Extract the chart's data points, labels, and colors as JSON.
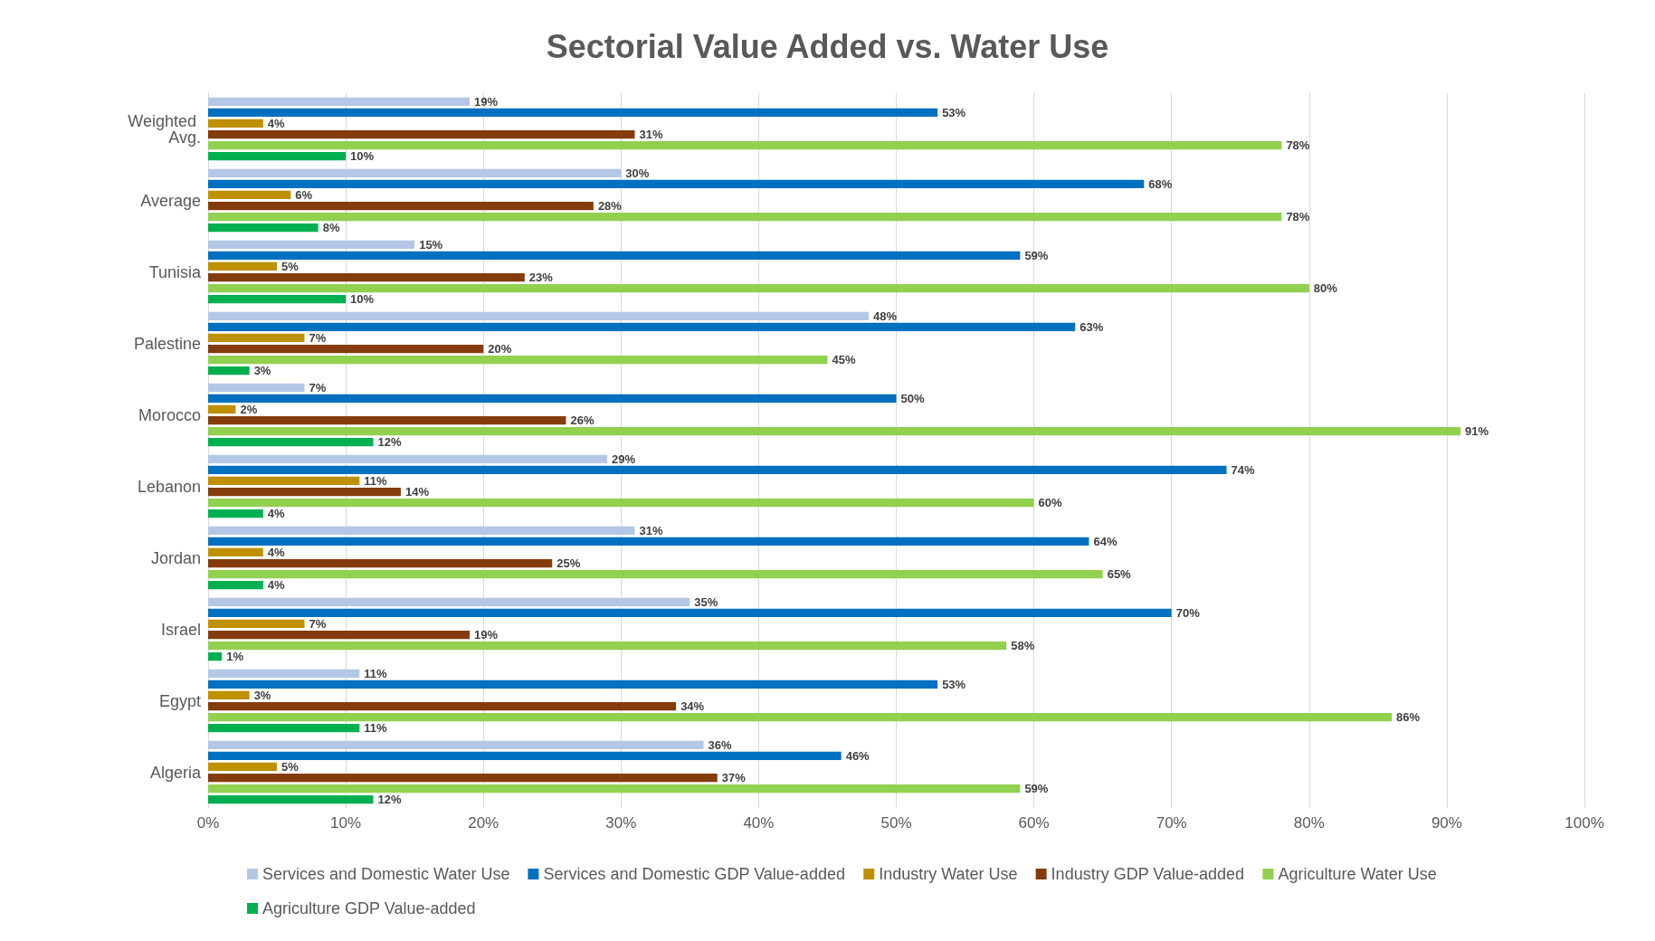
{
  "chart_data": {
    "type": "bar",
    "orientation": "horizontal",
    "title": "Sectorial Value Added vs. Water Use",
    "categories": [
      "Weighted Avg.",
      "Average",
      "Tunisia",
      "Palestine",
      "Morocco",
      "Lebanon",
      "Jordan",
      "Israel",
      "Egypt",
      "Algeria"
    ],
    "series": [
      {
        "name": "Services and Domestic Water Use",
        "color": "#b4c7e7",
        "values": [
          19,
          30,
          15,
          48,
          7,
          29,
          31,
          35,
          11,
          36
        ],
        "value_labels": [
          "19%",
          "30%",
          "15%",
          "48%",
          "7%",
          "29%",
          "31%",
          "35%",
          "11%",
          "36%"
        ]
      },
      {
        "name": "Services and Domestic GDP Value-added",
        "color": "#0070c0",
        "values": [
          53,
          68,
          59,
          63,
          50,
          74,
          64,
          70,
          53,
          46
        ],
        "value_labels": [
          "53%",
          "68%",
          "59%",
          "63%",
          "50%",
          "74%",
          "64%",
          "70%",
          "53%",
          "46%"
        ]
      },
      {
        "name": "Industry Water Use",
        "color": "#bf9000",
        "values": [
          4,
          6,
          5,
          7,
          2,
          11,
          4,
          7,
          3,
          5
        ],
        "value_labels": [
          "4%",
          "6%",
          "5%",
          "7%",
          "2%",
          "11%",
          "4%",
          "7%",
          "3%",
          "5%"
        ]
      },
      {
        "name": "Industry GDP Value-added",
        "color": "#843c0c",
        "values": [
          31,
          28,
          23,
          20,
          26,
          14,
          25,
          19,
          34,
          37
        ],
        "value_labels": [
          "31%",
          "28%",
          "23%",
          "20%",
          "26%",
          "14%",
          "25%",
          "19%",
          "34%",
          "37%"
        ]
      },
      {
        "name": "Agriculture Water Use",
        "color": "#92d050",
        "values": [
          78,
          78,
          80,
          45,
          91,
          60,
          65,
          58,
          86,
          59
        ],
        "value_labels": [
          "78%",
          "78%",
          "80%",
          "45%",
          "91%",
          "60%",
          "65%",
          "58%",
          "86%",
          "59%"
        ]
      },
      {
        "name": "Agriculture GDP Value-added",
        "color": "#00b050",
        "values": [
          10,
          8,
          10,
          3,
          12,
          4,
          4,
          1,
          11,
          12
        ],
        "value_labels": [
          "10%",
          "8%",
          "10%",
          "3%",
          "12%",
          "4%",
          "4%",
          "1%",
          "11%",
          "12%"
        ]
      }
    ],
    "xlim": [
      0,
      100
    ],
    "xticks": [
      {
        "value": 0,
        "label": "0%"
      },
      {
        "value": 10,
        "label": "10%"
      },
      {
        "value": 20,
        "label": "20%"
      },
      {
        "value": 30,
        "label": "30%"
      },
      {
        "value": 40,
        "label": "40%"
      },
      {
        "value": 50,
        "label": "50%"
      },
      {
        "value": 60,
        "label": "60%"
      },
      {
        "value": 70,
        "label": "70%"
      },
      {
        "value": 80,
        "label": "80%"
      },
      {
        "value": 90,
        "label": "90%"
      },
      {
        "value": 100,
        "label": "100%"
      }
    ],
    "grid": "x",
    "legend": "bottom"
  }
}
